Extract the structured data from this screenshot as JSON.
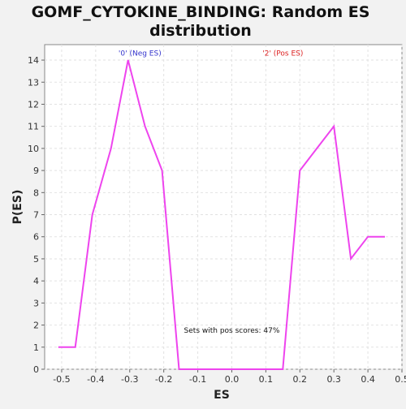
{
  "chart_data": {
    "type": "line",
    "title": "GOMF_CYTOKINE_BINDING: Random ES distribution",
    "title_lines": [
      "GOMF_CYTOKINE_BINDING: Random ES",
      "distribution"
    ],
    "xlabel": "ES",
    "ylabel": "P(ES)",
    "xlim": [
      -0.55,
      0.5
    ],
    "ylim": [
      0,
      14.7
    ],
    "xticks": [
      -0.5,
      -0.4,
      -0.3,
      -0.2,
      -0.1,
      0.0,
      0.1,
      0.2,
      0.3,
      0.4,
      0.5
    ],
    "xtick_labels": [
      "-0.5",
      "-0.4",
      "-0.3",
      "-0.2",
      "-0.1",
      "0.0",
      "0.1",
      "0.2",
      "0.3",
      "0.4",
      "0.5"
    ],
    "yticks": [
      0,
      1,
      2,
      3,
      4,
      5,
      6,
      7,
      8,
      9,
      10,
      11,
      12,
      13,
      14
    ],
    "ytick_labels": [
      "0",
      "1",
      "2",
      "3",
      "4",
      "5",
      "6",
      "7",
      "8",
      "9",
      "10",
      "11",
      "12",
      "13",
      "14"
    ],
    "grid": true,
    "series": [
      {
        "color": "#ee44ee",
        "x": [
          -0.51,
          -0.46,
          -0.41,
          -0.355,
          -0.305,
          -0.255,
          -0.205,
          -0.155,
          -0.105,
          -0.055,
          0.0,
          0.05,
          0.1,
          0.15,
          0.2,
          0.25,
          0.3,
          0.35,
          0.4,
          0.45
        ],
        "y": [
          1,
          1,
          7,
          10,
          14,
          11,
          9,
          0,
          0,
          0,
          0,
          0,
          0,
          0,
          9,
          10,
          11,
          5,
          6,
          6
        ]
      }
    ],
    "annotations": [
      {
        "text": "'0' (Neg ES)",
        "color": "#3333cc",
        "x": -0.27,
        "y": 14.35
      },
      {
        "text": "'2' (Pos ES)",
        "color": "#dd2222",
        "x": 0.15,
        "y": 14.35
      },
      {
        "text": "Sets with pos scores: 47%",
        "color": "#111111",
        "x": 0.0,
        "y": 1.8
      }
    ]
  }
}
